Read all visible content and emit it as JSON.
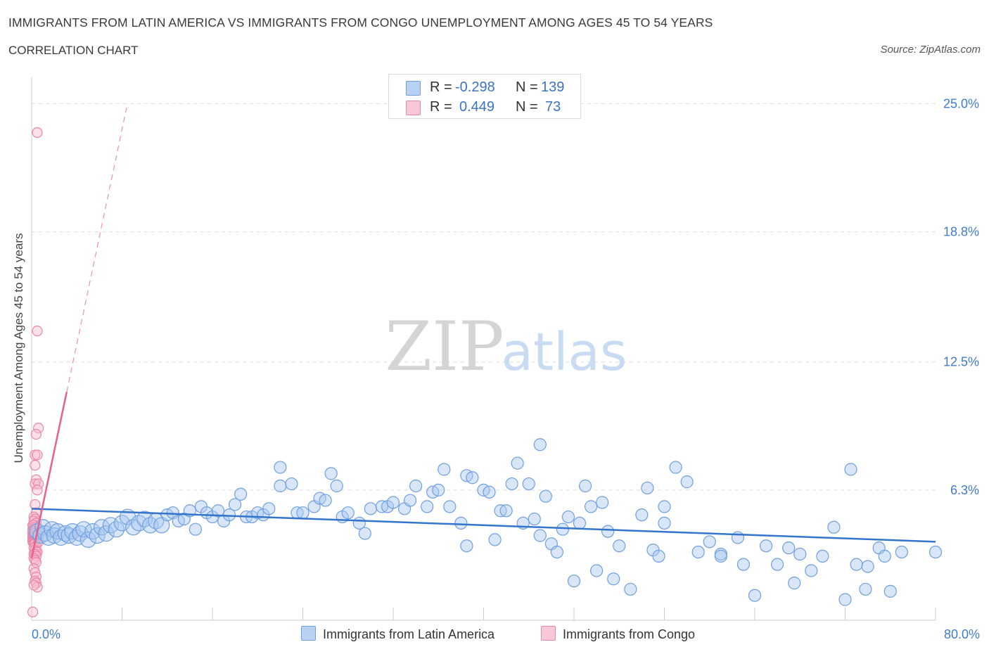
{
  "header": {
    "title": "IMMIGRANTS FROM LATIN AMERICA VS IMMIGRANTS FROM CONGO UNEMPLOYMENT AMONG AGES 45 TO 54 YEARS",
    "subtitle": "CORRELATION CHART",
    "source": "Source: ZipAtlas.com"
  },
  "watermark": {
    "zip": "ZIP",
    "atlas": "atlas"
  },
  "legend": {
    "rows": [
      {
        "r_label": "R =",
        "r_value": "-0.298",
        "n_label": "N =",
        "n_value": "139"
      },
      {
        "r_label": "R =",
        "r_value": "0.449",
        "n_label": "N =",
        "n_value": "73"
      }
    ]
  },
  "colors": {
    "blue_fill": "#a9c8f0",
    "blue_stroke": "#6e9fe0",
    "blue_line": "#3374cc",
    "pink_fill": "#f7bccd",
    "pink_stroke": "#ec86a6",
    "pink_line": "#e8608c",
    "axis_text": "#3f7bd0",
    "grid": "#dddddd"
  },
  "chart_data": {
    "type": "scatter",
    "title": "IMMIGRANTS FROM LATIN AMERICA VS IMMIGRANTS FROM CONGO UNEMPLOYMENT AMONG AGES 45 TO 54 YEARS",
    "subtitle": "CORRELATION CHART",
    "xlabel": "",
    "ylabel": "Unemployment Among Ages 45 to 54 years",
    "xlim": [
      0,
      80
    ],
    "ylim": [
      0,
      26
    ],
    "x_tick_labels": [
      "0.0%",
      "80.0%"
    ],
    "y_ticks": [
      6.3,
      12.5,
      18.8,
      25.0
    ],
    "y_tick_labels": [
      "6.3%",
      "12.5%",
      "18.8%",
      "25.0%"
    ],
    "grid": true,
    "legend_position": "top-center",
    "series": [
      {
        "name": "Immigrants from Latin America",
        "color": "#a9c8f0",
        "r": -0.298,
        "n": 139,
        "trend": {
          "x": [
            0,
            80
          ],
          "y": [
            5.4,
            3.8
          ],
          "style": "solid"
        },
        "points": [
          [
            0.5,
            4.3
          ],
          [
            0.8,
            4.1
          ],
          [
            1.0,
            4.5
          ],
          [
            1.2,
            4.2
          ],
          [
            1.5,
            4.0
          ],
          [
            1.8,
            4.4
          ],
          [
            2.0,
            4.1
          ],
          [
            2.3,
            4.3
          ],
          [
            2.6,
            4.0
          ],
          [
            3.0,
            4.2
          ],
          [
            3.3,
            4.1
          ],
          [
            3.6,
            4.3
          ],
          [
            4.0,
            4.0
          ],
          [
            4.3,
            4.2
          ],
          [
            4.6,
            4.4
          ],
          [
            5.0,
            3.9
          ],
          [
            5.4,
            4.3
          ],
          [
            5.8,
            4.1
          ],
          [
            6.2,
            4.5
          ],
          [
            6.6,
            4.2
          ],
          [
            7.0,
            4.6
          ],
          [
            7.5,
            4.4
          ],
          [
            8.0,
            4.7
          ],
          [
            8.5,
            5.0
          ],
          [
            9.0,
            4.5
          ],
          [
            9.5,
            4.7
          ],
          [
            10.0,
            4.9
          ],
          [
            10.5,
            4.6
          ],
          [
            11.0,
            4.8
          ],
          [
            11.5,
            4.6
          ],
          [
            12.0,
            5.1
          ],
          [
            12.5,
            5.2
          ],
          [
            13.0,
            4.8
          ],
          [
            13.5,
            4.9
          ],
          [
            14.0,
            5.3
          ],
          [
            14.5,
            4.4
          ],
          [
            15.0,
            5.5
          ],
          [
            15.5,
            5.2
          ],
          [
            16.0,
            5.0
          ],
          [
            16.5,
            5.3
          ],
          [
            17.0,
            4.8
          ],
          [
            17.5,
            5.1
          ],
          [
            18.0,
            5.6
          ],
          [
            18.5,
            6.1
          ],
          [
            19.0,
            5.0
          ],
          [
            19.5,
            5.0
          ],
          [
            20.0,
            5.2
          ],
          [
            20.5,
            5.1
          ],
          [
            21.0,
            5.4
          ],
          [
            22.0,
            7.4
          ],
          [
            22.0,
            6.5
          ],
          [
            23.0,
            6.6
          ],
          [
            23.5,
            5.2
          ],
          [
            24.0,
            5.2
          ],
          [
            25.0,
            5.5
          ],
          [
            25.5,
            5.9
          ],
          [
            26.0,
            5.8
          ],
          [
            26.5,
            7.1
          ],
          [
            27.0,
            6.5
          ],
          [
            27.5,
            5.0
          ],
          [
            28.0,
            5.2
          ],
          [
            29.0,
            4.7
          ],
          [
            29.5,
            4.2
          ],
          [
            30.0,
            5.4
          ],
          [
            31.0,
            5.5
          ],
          [
            31.5,
            5.5
          ],
          [
            32.0,
            5.7
          ],
          [
            33.0,
            5.4
          ],
          [
            33.5,
            5.8
          ],
          [
            34.0,
            6.5
          ],
          [
            35.0,
            5.5
          ],
          [
            35.5,
            6.2
          ],
          [
            36.0,
            6.3
          ],
          [
            36.5,
            7.3
          ],
          [
            37.0,
            5.5
          ],
          [
            38.0,
            4.7
          ],
          [
            38.5,
            7.0
          ],
          [
            38.5,
            3.6
          ],
          [
            39.0,
            6.9
          ],
          [
            40.0,
            6.3
          ],
          [
            40.5,
            6.2
          ],
          [
            41.0,
            3.9
          ],
          [
            41.5,
            5.3
          ],
          [
            42.0,
            5.3
          ],
          [
            42.5,
            6.6
          ],
          [
            43.0,
            7.6
          ],
          [
            43.5,
            4.7
          ],
          [
            44.0,
            6.6
          ],
          [
            44.5,
            4.9
          ],
          [
            45.0,
            8.5
          ],
          [
            45.0,
            4.1
          ],
          [
            45.5,
            6.0
          ],
          [
            46.0,
            3.7
          ],
          [
            46.5,
            3.3
          ],
          [
            47.0,
            4.4
          ],
          [
            47.5,
            5.0
          ],
          [
            48.0,
            1.9
          ],
          [
            48.5,
            4.7
          ],
          [
            49.0,
            6.5
          ],
          [
            49.5,
            5.5
          ],
          [
            50.0,
            2.4
          ],
          [
            50.5,
            5.7
          ],
          [
            51.0,
            4.3
          ],
          [
            51.5,
            2.0
          ],
          [
            52.0,
            3.6
          ],
          [
            53.0,
            1.5
          ],
          [
            54.0,
            5.1
          ],
          [
            54.5,
            6.4
          ],
          [
            55.0,
            3.4
          ],
          [
            55.5,
            3.1
          ],
          [
            56.0,
            5.5
          ],
          [
            56.0,
            4.7
          ],
          [
            57.0,
            7.4
          ],
          [
            58.0,
            6.7
          ],
          [
            59.0,
            3.3
          ],
          [
            60.0,
            3.8
          ],
          [
            61.0,
            3.2
          ],
          [
            61.0,
            3.1
          ],
          [
            62.5,
            4.0
          ],
          [
            63.0,
            2.7
          ],
          [
            64.0,
            1.2
          ],
          [
            65.0,
            3.6
          ],
          [
            66.0,
            2.7
          ],
          [
            67.0,
            3.5
          ],
          [
            67.5,
            1.8
          ],
          [
            68.0,
            3.2
          ],
          [
            69.0,
            2.4
          ],
          [
            70.0,
            3.1
          ],
          [
            71.0,
            4.5
          ],
          [
            72.5,
            7.3
          ],
          [
            73.0,
            2.7
          ],
          [
            74.0,
            2.6
          ],
          [
            75.0,
            3.5
          ],
          [
            75.5,
            3.1
          ],
          [
            76.0,
            1.4
          ],
          [
            77.0,
            3.3
          ],
          [
            80.0,
            3.3
          ],
          [
            72.0,
            1.0
          ],
          [
            73.8,
            1.5
          ]
        ]
      },
      {
        "name": "Immigrants from Congo",
        "color": "#f7bccd",
        "r": 0.449,
        "n": 73,
        "trend": {
          "x": [
            0,
            8.4
          ],
          "y": [
            3.0,
            24.8
          ],
          "solid_until_x": 3.1,
          "style": "solid-then-dashed"
        },
        "points": [
          [
            0.5,
            23.6
          ],
          [
            0.5,
            14.0
          ],
          [
            0.6,
            9.3
          ],
          [
            0.4,
            9.0
          ],
          [
            0.3,
            8.0
          ],
          [
            0.5,
            8.0
          ],
          [
            0.3,
            7.5
          ],
          [
            0.4,
            6.8
          ],
          [
            0.3,
            6.6
          ],
          [
            0.6,
            6.6
          ],
          [
            0.5,
            6.3
          ],
          [
            0.3,
            5.6
          ],
          [
            0.4,
            5.2
          ],
          [
            0.2,
            5.0
          ],
          [
            0.3,
            4.9
          ],
          [
            0.2,
            4.8
          ],
          [
            0.4,
            4.7
          ],
          [
            0.1,
            4.6
          ],
          [
            0.2,
            4.5
          ],
          [
            0.3,
            4.5
          ],
          [
            0.1,
            4.4
          ],
          [
            0.2,
            4.4
          ],
          [
            0.3,
            4.3
          ],
          [
            0.4,
            4.3
          ],
          [
            0.1,
            4.2
          ],
          [
            0.2,
            4.2
          ],
          [
            0.3,
            4.2
          ],
          [
            0.5,
            4.2
          ],
          [
            0.1,
            4.1
          ],
          [
            0.2,
            4.1
          ],
          [
            0.3,
            4.1
          ],
          [
            0.4,
            4.1
          ],
          [
            0.1,
            4.0
          ],
          [
            0.2,
            4.0
          ],
          [
            0.3,
            4.0
          ],
          [
            0.4,
            4.0
          ],
          [
            0.5,
            4.0
          ],
          [
            0.1,
            3.9
          ],
          [
            0.2,
            3.9
          ],
          [
            0.3,
            3.9
          ],
          [
            0.4,
            3.9
          ],
          [
            0.1,
            3.8
          ],
          [
            0.2,
            3.8
          ],
          [
            0.3,
            3.8
          ],
          [
            0.2,
            3.7
          ],
          [
            0.3,
            3.7
          ],
          [
            0.4,
            3.6
          ],
          [
            0.2,
            3.5
          ],
          [
            0.3,
            3.4
          ],
          [
            0.4,
            3.3
          ],
          [
            0.5,
            3.3
          ],
          [
            0.2,
            3.2
          ],
          [
            0.3,
            3.2
          ],
          [
            0.4,
            3.1
          ],
          [
            0.2,
            3.0
          ],
          [
            0.3,
            2.9
          ],
          [
            0.4,
            2.8
          ],
          [
            0.2,
            2.5
          ],
          [
            0.3,
            2.3
          ],
          [
            0.4,
            2.1
          ],
          [
            0.3,
            1.9
          ],
          [
            0.4,
            1.8
          ],
          [
            0.5,
            1.6
          ],
          [
            0.2,
            1.7
          ],
          [
            0.1,
            0.4
          ],
          [
            0.4,
            4.5
          ],
          [
            0.5,
            4.4
          ],
          [
            0.6,
            4.1
          ],
          [
            0.6,
            3.8
          ],
          [
            0.7,
            4.3
          ],
          [
            0.2,
            4.6
          ],
          [
            0.1,
            4.3
          ],
          [
            0.2,
            4.2
          ]
        ]
      }
    ],
    "x_scale_note": "x in percent of population (0 to 80)"
  }
}
